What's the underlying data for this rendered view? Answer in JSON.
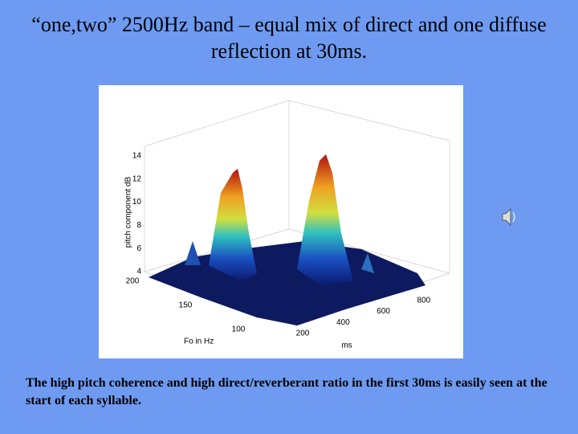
{
  "slide": {
    "title": "“one,two” 2500Hz band – equal mix of direct and one diffuse reflection at 30ms.",
    "figure": {
      "z_label": "pitch component dB",
      "z_ticks": [
        "14",
        "12",
        "10",
        "8",
        "6",
        "4"
      ],
      "y_label": "Fo in Hz",
      "y_ticks": [
        "200",
        "150",
        "100"
      ],
      "x_label": "ms",
      "x_ticks": [
        "200",
        "400",
        "600",
        "800"
      ]
    },
    "caption": "The high pitch coherence and high direct/reverberant ratio in the first 30ms is easily seen at the start of each syllable."
  }
}
